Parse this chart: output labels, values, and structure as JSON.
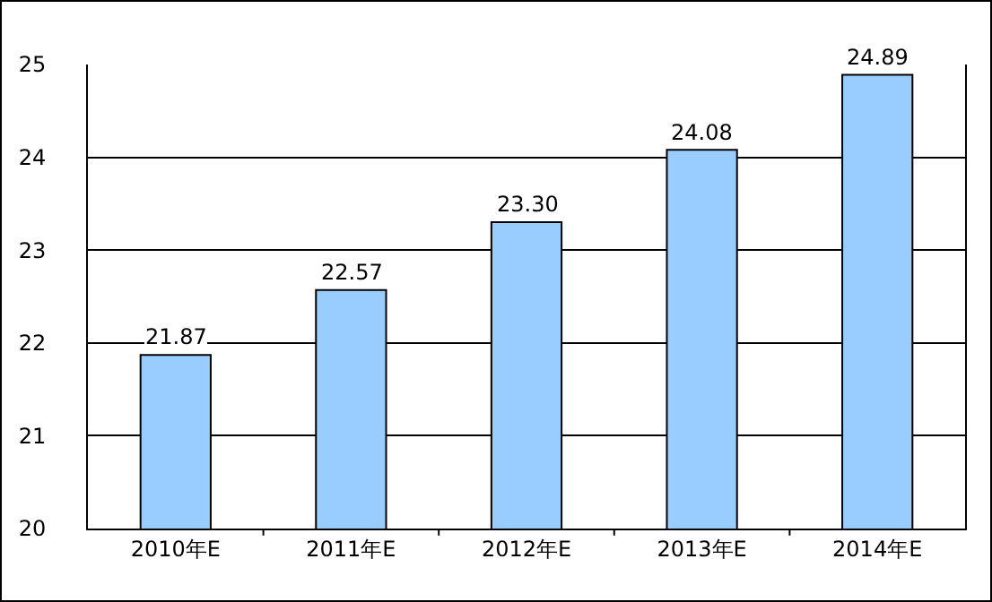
{
  "chart_data": {
    "type": "bar",
    "categories": [
      "2010年E",
      "2011年E",
      "2012年E",
      "2013年E",
      "2014年E"
    ],
    "values": [
      21.87,
      22.57,
      23.3,
      24.08,
      24.89
    ],
    "value_labels": [
      "21.87",
      "22.57",
      "23.30",
      "24.08",
      "24.89"
    ],
    "color": "#99ccff",
    "ylim": [
      20,
      25
    ],
    "yticks": [
      20,
      21,
      22,
      23,
      24,
      25
    ],
    "grid": "y"
  }
}
